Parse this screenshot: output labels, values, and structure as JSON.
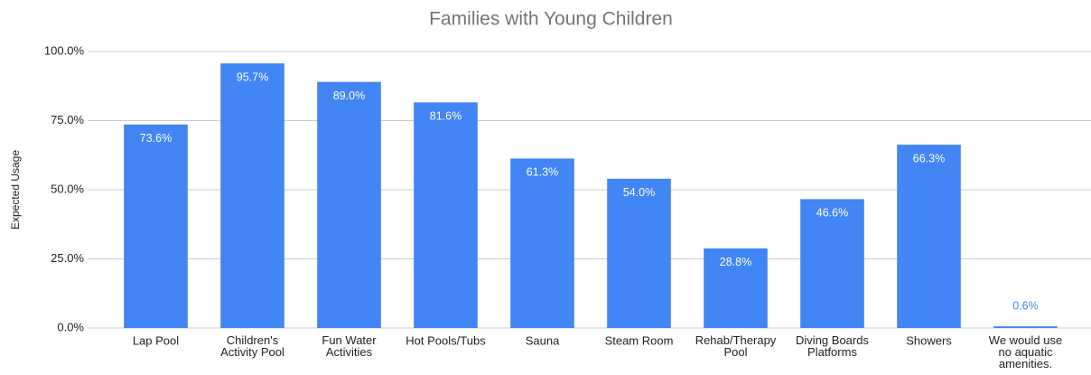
{
  "chart_data": {
    "type": "bar",
    "title": "Families with Young Children",
    "y_label": "Expected Usage",
    "categories": [
      "Lap Pool",
      "Children's\nActivity Pool",
      "Fun Water\nActivities",
      "Hot Pools/Tubs",
      "Sauna",
      "Steam Room",
      "Rehab/Therapy\nPool",
      "Diving Boards\nPlatforms",
      "Showers",
      "We would use\nno aquatic\namenities."
    ],
    "values": [
      73.6,
      95.7,
      89.0,
      81.6,
      61.3,
      54.0,
      28.8,
      46.6,
      66.3,
      0.6
    ],
    "value_labels": [
      "73.6%",
      "95.7%",
      "89.0%",
      "81.6%",
      "61.3%",
      "54.0%",
      "28.8%",
      "46.6%",
      "66.3%",
      "0.6%"
    ],
    "color": "#4285f4",
    "ylim": [
      0,
      100
    ],
    "yticks": [
      {
        "value": 0,
        "label": "0.0%"
      },
      {
        "value": 25,
        "label": "25.0%"
      },
      {
        "value": 50,
        "label": "50.0%"
      },
      {
        "value": 75,
        "label": "75.0%"
      },
      {
        "value": 100,
        "label": "100.0%"
      }
    ],
    "grid": true
  }
}
